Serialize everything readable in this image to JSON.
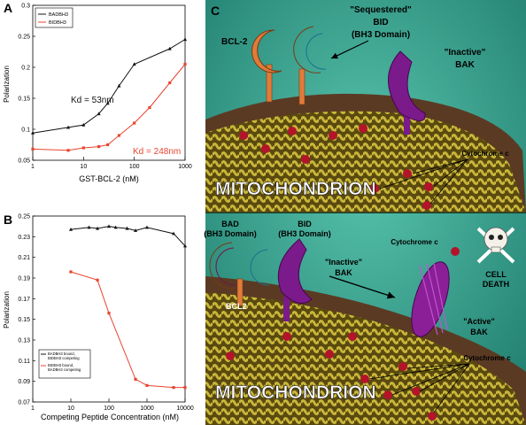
{
  "panels": {
    "a_label": "A",
    "b_label": "B",
    "c_label": "C"
  },
  "colors": {
    "series_black": "#111111",
    "series_red": "#e8452f",
    "teal": "#2e9e8b",
    "mito_outer": "#5b3a24",
    "mito_cristae": "#b8aa2c",
    "bcl2_orange": "#e17b3a",
    "bid_blue": "#4cb6d8",
    "bad_pink": "#d73d8e",
    "bak_purple": "#7b1a8a"
  },
  "chart_data": [
    {
      "type": "line",
      "panel": "A",
      "xlabel": "GST-BCL-2 (nM)",
      "ylabel": "Polarization",
      "xscale": "log",
      "xlim": [
        1,
        1000
      ],
      "ylim": [
        0.05,
        0.3
      ],
      "xticks": [
        "1",
        "10",
        "100",
        "1000"
      ],
      "yticks": [
        "0.05",
        "0.1",
        "0.15",
        "0.2",
        "0.25",
        "0.3"
      ],
      "legend": "top-left",
      "series": [
        {
          "name": "BADBH3",
          "x": [
            1,
            5,
            10,
            20,
            30,
            50,
            100,
            500,
            1000
          ],
          "y": [
            0.094,
            0.103,
            0.107,
            0.125,
            0.142,
            0.17,
            0.205,
            0.23,
            0.245
          ]
        },
        {
          "name": "BIDBH3",
          "x": [
            1,
            5,
            10,
            20,
            30,
            50,
            100,
            200,
            500,
            1000
          ],
          "y": [
            0.068,
            0.066,
            0.07,
            0.072,
            0.075,
            0.09,
            0.11,
            0.135,
            0.175,
            0.205
          ]
        }
      ],
      "annotations": [
        {
          "text": "Kd = 53nm",
          "series": "BADBH3"
        },
        {
          "text": "Kd = 248nm",
          "series": "BIDBH3"
        }
      ]
    },
    {
      "type": "line",
      "panel": "B",
      "xlabel": "Competing Peptide Concentration (nM)",
      "ylabel": "Polarization",
      "xscale": "log",
      "xlim": [
        1,
        10000
      ],
      "ylim": [
        0.07,
        0.25
      ],
      "xticks": [
        "1",
        "10",
        "100",
        "1000",
        "10000"
      ],
      "yticks": [
        "0.07",
        "0.09",
        "0.11",
        "0.13",
        "0.15",
        "0.17",
        "0.19",
        "0.21",
        "0.23",
        "0.25"
      ],
      "legend": "bottom-left",
      "series": [
        {
          "name": "BADBH3 bound, BIDBH3 competing",
          "x": [
            10,
            30,
            50,
            100,
            150,
            300,
            500,
            1000,
            5000,
            10000
          ],
          "y": [
            0.237,
            0.239,
            0.238,
            0.24,
            0.239,
            0.238,
            0.236,
            0.239,
            0.233,
            0.221
          ]
        },
        {
          "name": "BIDBH3 bound, BADBH3 competing",
          "x": [
            10,
            50,
            100,
            500,
            1000,
            5000,
            10000
          ],
          "y": [
            0.196,
            0.188,
            0.156,
            0.092,
            0.086,
            0.084,
            0.084
          ]
        }
      ]
    }
  ],
  "diagram_top": {
    "bcl2_label": "BCL-2",
    "bid_label_line1": "\"Sequestered\"",
    "bid_label_line2": "BID",
    "bid_label_line3": "(BH3 Domain)",
    "bak_label_line1": "\"Inactive\"",
    "bak_label_line2": "BAK",
    "cytochrome_label": "Cytochrome c",
    "mito_label": "MITOCHONDRION"
  },
  "diagram_bottom": {
    "bad_label_line1": "BAD",
    "bad_label_line2": "(BH3 Domain)",
    "bid_label_line1": "BID",
    "bid_label_line2": "(BH3 Domain)",
    "cyto_free_label": "Cytochrome c",
    "inactive_bak_line1": "\"Inactive\"",
    "inactive_bak_line2": "BAK",
    "active_bak_line1": "\"Active\"",
    "active_bak_line2": "BAK",
    "bcl2_label": "BCL2",
    "death_line1": "CELL",
    "death_line2": "DEATH",
    "cytochrome_label": "Cytochrome c",
    "mito_label": "MITOCHONDRION"
  }
}
